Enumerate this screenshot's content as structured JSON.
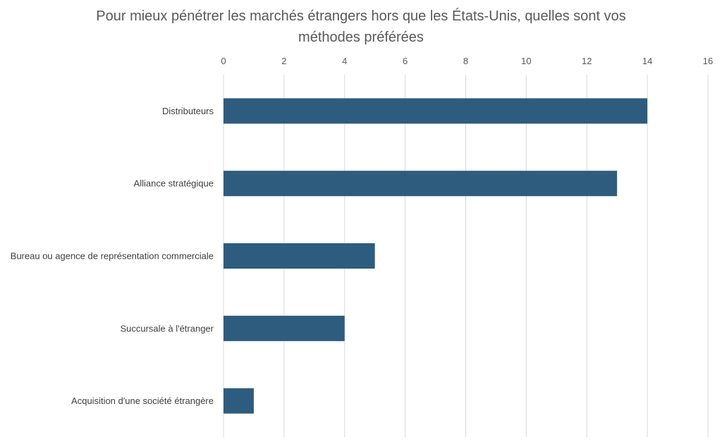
{
  "chart_data": {
    "type": "bar",
    "orientation": "horizontal",
    "title_lines": [
      "Pour mieux pénétrer les marchés étrangers hors que les États-Unis, quelles sont vos",
      "méthodes préférées"
    ],
    "categories": [
      "Distributeurs",
      "Alliance stratégique",
      "Bureau ou agence de représentation commerciale",
      "Succursale à l'étranger",
      "Acquisition d'une société étrangère"
    ],
    "values": [
      14,
      13,
      5,
      4,
      1
    ],
    "xlim": [
      0,
      16
    ],
    "xticks": [
      0,
      2,
      4,
      6,
      8,
      10,
      12,
      14,
      16
    ],
    "axis_position": "top",
    "grid": true,
    "bar_color": "#2e5c7e",
    "grid_color": "#d9d9d9"
  }
}
